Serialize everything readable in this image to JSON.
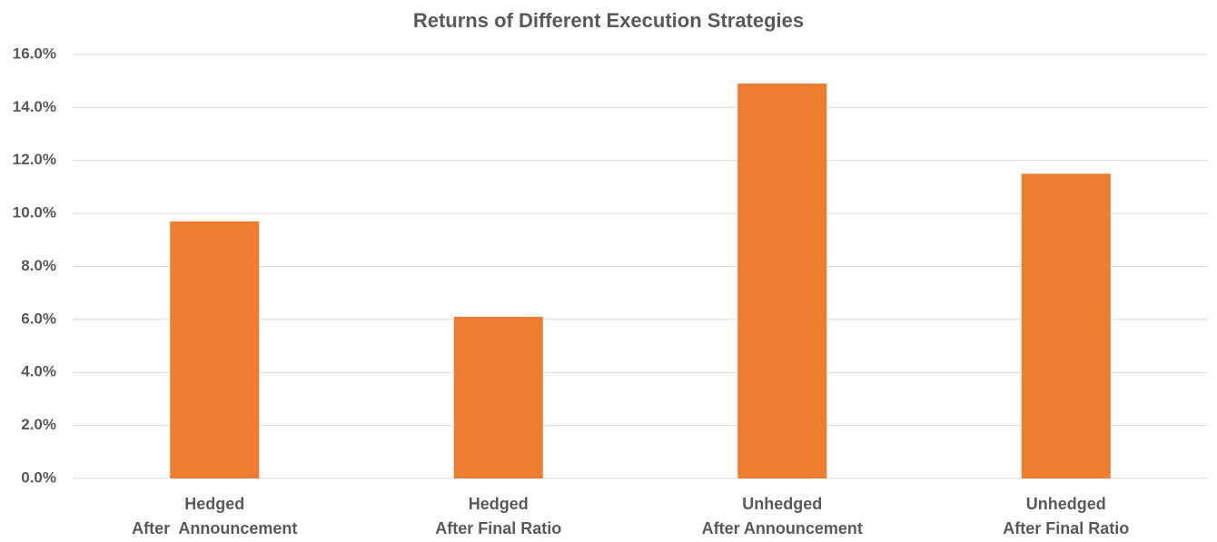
{
  "chart_data": {
    "type": "bar",
    "title": "Returns of Different Execution Strategies",
    "categories": [
      [
        "Hedged",
        "After  Announcement"
      ],
      [
        "Hedged",
        "After Final Ratio"
      ],
      [
        "Unhedged",
        "After Announcement"
      ],
      [
        "Unhedged",
        "After Final Ratio"
      ]
    ],
    "values": [
      9.7,
      6.1,
      14.9,
      11.5
    ],
    "color": "#ed7d31",
    "ylim": [
      0,
      16
    ],
    "yticks": [
      {
        "value": 0,
        "label": "0.0%"
      },
      {
        "value": 2,
        "label": "2.0%"
      },
      {
        "value": 4,
        "label": "4.0%"
      },
      {
        "value": 6,
        "label": "6.0%"
      },
      {
        "value": 8,
        "label": "8.0%"
      },
      {
        "value": 10,
        "label": "10.0%"
      },
      {
        "value": 12,
        "label": "12.0%"
      },
      {
        "value": 14,
        "label": "14.0%"
      },
      {
        "value": 16,
        "label": "16.0%"
      }
    ],
    "grid": true
  }
}
